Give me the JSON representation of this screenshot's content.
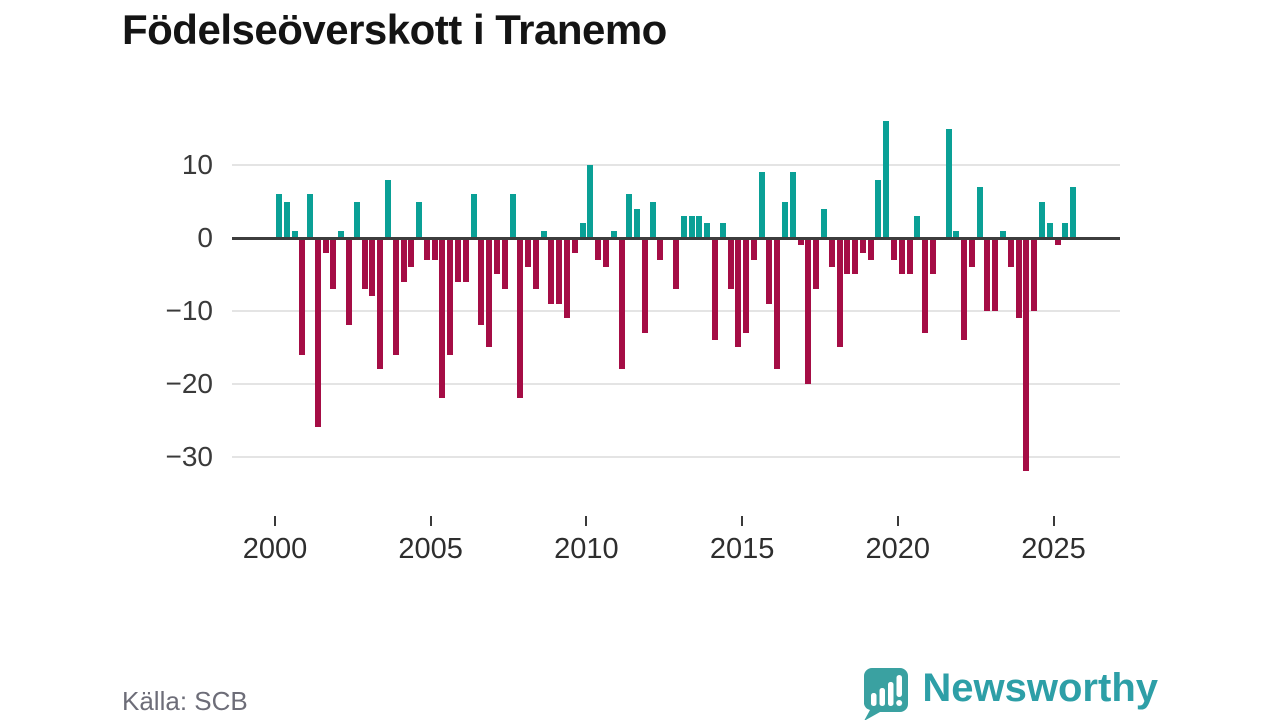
{
  "title": "Födelseöverskott i Tranemo",
  "source": "Källa: SCB",
  "brand": {
    "name": "Newsworthy",
    "icon": "speech-bubble-bar-chart-icon"
  },
  "colors": {
    "positive": "#0aa096",
    "negative": "#a50d45",
    "zero_axis": "#3d3d3d",
    "grid": "#e4e4e4",
    "tick_text": "#2e2e2e",
    "title_text": "#141414",
    "source_text": "#6d6d78",
    "brand_teal": "#2d9fa7"
  },
  "chart_data": {
    "type": "bar",
    "title": "Födelseöverskott i Tranemo",
    "frequency": "quarterly",
    "start_year": 2000,
    "start_quarter": 1,
    "grid": "horizontal",
    "legend": "none",
    "ylim": [
      -35,
      17
    ],
    "y_ticks": [
      10,
      0,
      -10,
      -20,
      -30
    ],
    "y_tick_labels": [
      "10",
      "0",
      "−10",
      "−20",
      "−30"
    ],
    "x_ticks": [
      2000,
      2005,
      2010,
      2015,
      2020,
      2025
    ],
    "x_tick_labels": [
      "2000",
      "2005",
      "2010",
      "2015",
      "2020",
      "2025"
    ],
    "values": [
      6,
      5,
      1,
      -16,
      6,
      -26,
      -2,
      -7,
      1,
      -12,
      5,
      -7,
      -8,
      -18,
      8,
      -16,
      -6,
      -4,
      5,
      -3,
      -3,
      -22,
      -16,
      -6,
      -6,
      6,
      -12,
      -15,
      -5,
      -7,
      6,
      -22,
      -4,
      -7,
      1,
      -9,
      -9,
      -11,
      -2,
      2,
      10,
      -3,
      -4,
      1,
      -18,
      6,
      4,
      -13,
      5,
      -3,
      0,
      -7,
      3,
      3,
      3,
      2,
      -14,
      2,
      -7,
      -15,
      -13,
      -3,
      9,
      -9,
      -18,
      5,
      9,
      -1,
      -20,
      -7,
      4,
      -4,
      -15,
      -5,
      -5,
      -2,
      -3,
      8,
      16,
      -3,
      -5,
      -5,
      3,
      -13,
      -5,
      0,
      15,
      1,
      -14,
      -4,
      7,
      -10,
      -10,
      1,
      -4,
      -11,
      -32,
      -10,
      5,
      2,
      -1,
      2,
      7
    ]
  }
}
